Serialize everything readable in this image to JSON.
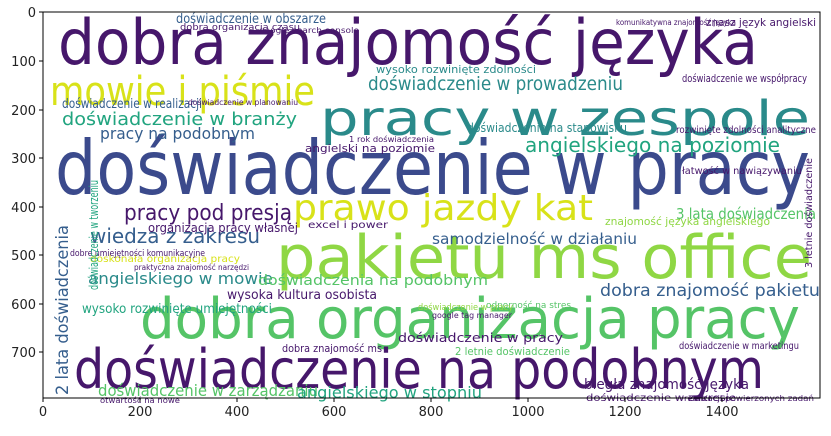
{
  "axes": {
    "x_ticks": [
      "0",
      "200",
      "400",
      "600",
      "800",
      "1000",
      "1200",
      "1400"
    ],
    "y_ticks": [
      "0",
      "100",
      "200",
      "300",
      "400",
      "500",
      "600",
      "700"
    ],
    "xlim": [
      0,
      1600
    ],
    "ylim": [
      800,
      0
    ]
  },
  "colors": {
    "dark_purple": "#46176b",
    "indigo": "#3b4a8c",
    "slate_blue": "#355e8d",
    "teal": "#2a8a8a",
    "sea_green": "#21a47f",
    "green": "#55c467",
    "light_green": "#8fd744",
    "yellow": "#d8e219"
  },
  "words": [
    {
      "text": "dobra znajomość języka",
      "size": 62,
      "color": "#46176b"
    },
    {
      "text": "doświadczenie w pracy",
      "size": 75,
      "color": "#3b4a8c"
    },
    {
      "text": "pakietu ms office",
      "size": 60,
      "color": "#8fd744"
    },
    {
      "text": "dobra organizacja pracy",
      "size": 56,
      "color": "#55c467"
    },
    {
      "text": "doświadczenie na podobnym",
      "size": 54,
      "color": "#46176b"
    },
    {
      "text": "pracy w zespole",
      "size": 48,
      "color": "#2a8a8a"
    },
    {
      "text": "mowie i piśmie",
      "size": 40,
      "color": "#d8e219"
    },
    {
      "text": "prawo jazdy kat",
      "size": 36,
      "color": "#d8e219"
    },
    {
      "text": "pracy pod presją",
      "size": 22,
      "color": "#46176b"
    },
    {
      "text": "angielskiego na poziomie",
      "size": 20,
      "color": "#21a47f"
    },
    {
      "text": "doświadczenie w prowadzeniu",
      "size": 19,
      "color": "#2a8a8a"
    },
    {
      "text": "doświadczenie w branży",
      "size": 18,
      "color": "#21a47f"
    },
    {
      "text": "pracy na podobnym",
      "size": 16,
      "color": "#355e8d"
    },
    {
      "text": "doświadczenie w realizacji",
      "size": 13,
      "color": "#355e8d"
    },
    {
      "text": "doświadczenie w obszarze",
      "size": 13,
      "color": "#355e8d"
    },
    {
      "text": "wiedza z zakresu",
      "size": 20,
      "color": "#355e8d"
    },
    {
      "text": "angielskiego w mowie",
      "size": 16,
      "color": "#2a8a8a"
    },
    {
      "text": "doświadczenie w zarządzaniu",
      "size": 16,
      "color": "#55c467"
    },
    {
      "text": "angielskiego w stopniu",
      "size": 16,
      "color": "#21a47f"
    },
    {
      "text": "dobra znajomość pakietu",
      "size": 17,
      "color": "#355e8d"
    },
    {
      "text": "samodzielność w działaniu",
      "size": 15,
      "color": "#355e8d"
    },
    {
      "text": "3 lata doświadczenia",
      "size": 15,
      "color": "#55c467"
    },
    {
      "text": "doświadczenia na podobnym",
      "size": 14,
      "color": "#55c467"
    },
    {
      "text": "doświadczenie na stanowisku",
      "size": 12,
      "color": "#2a8a8a"
    },
    {
      "text": "wysoko rozwinięte zdolności",
      "size": 11,
      "color": "#2a8a8a"
    },
    {
      "text": "wysoko rozwinięte umiejętności",
      "size": 13,
      "color": "#21a47f"
    },
    {
      "text": "wysoka kultura osobista",
      "size": 13,
      "color": "#46176b"
    },
    {
      "text": "biegła znajomość języka",
      "size": 14,
      "color": "#46176b"
    },
    {
      "text": "doświadczenie w pracy",
      "size": 12,
      "color": "#46176b"
    },
    {
      "text": "dobra organizacja czasu",
      "size": 9,
      "color": "#46176b"
    },
    {
      "text": "doświadczenie w marketingu",
      "size": 10,
      "color": "#46176b"
    },
    {
      "text": "doświadczenie we współpracy",
      "size": 11,
      "color": "#46176b"
    },
    {
      "text": "znasz język angielski",
      "size": 11,
      "color": "#46176b"
    },
    {
      "text": "organizacja pracy własnej",
      "size": 12,
      "color": "#46176b"
    },
    {
      "text": "angielski na poziomie",
      "size": 11,
      "color": "#46176b"
    },
    {
      "text": "rozwinięte zdolności analityczne",
      "size": 10,
      "color": "#46176b"
    },
    {
      "text": "łatwość w nawiązywaniu",
      "size": 10,
      "color": "#46176b"
    },
    {
      "text": "dobra znajomość ms",
      "size": 11,
      "color": "#46176b"
    },
    {
      "text": "2 letnie doświadczenie",
      "size": 11,
      "color": "#55c467"
    },
    {
      "text": "doświadczenie w zakresie",
      "size": 10,
      "color": "#46176b"
    },
    {
      "text": "excel i power",
      "size": 10,
      "color": "#46176b"
    },
    {
      "text": "doskonała organizacja pracy",
      "size": 10,
      "color": "#d8e219"
    },
    {
      "text": "dobre umiejętności komunikacyjne",
      "size": 9,
      "color": "#46176b"
    },
    {
      "text": "praktyczna znajomość narzędzi",
      "size": 8,
      "color": "#46176b"
    },
    {
      "text": "realizacji powierzonych zadań",
      "size": 8,
      "color": "#46176b"
    },
    {
      "text": "google search console",
      "size": 8,
      "color": "#46176b"
    },
    {
      "text": "komunikatywna znajomość języka",
      "size": 8,
      "color": "#46176b"
    },
    {
      "text": "otwartość na nowe",
      "size": 8,
      "color": "#46176b"
    },
    {
      "text": "znajomość języka angielskiego",
      "size": 11,
      "color": "#8fd744"
    },
    {
      "text": "2 lata doświadczenia",
      "size": 17,
      "color": "#355e8d",
      "vertical": true
    },
    {
      "text": "doświadczenie w tworzeniu",
      "size": 12,
      "color": "#21a47f",
      "vertical": true
    },
    {
      "text": "3 letnie doświadczenie",
      "size": 10,
      "color": "#46176b",
      "vertical": true
    },
    {
      "text": "google tag manager",
      "size": 8,
      "color": "#46176b"
    },
    {
      "text": "odporność na stres",
      "size": 9,
      "color": "#55c467"
    },
    {
      "text": "doświadczenie w planowaniu",
      "size": 8,
      "color": "#46176b"
    },
    {
      "text": "1 rok doświadczenia",
      "size": 8,
      "color": "#46176b"
    },
    {
      "text": "doświadczenie w pracy",
      "size": 9,
      "color": "#8fd744"
    }
  ]
}
